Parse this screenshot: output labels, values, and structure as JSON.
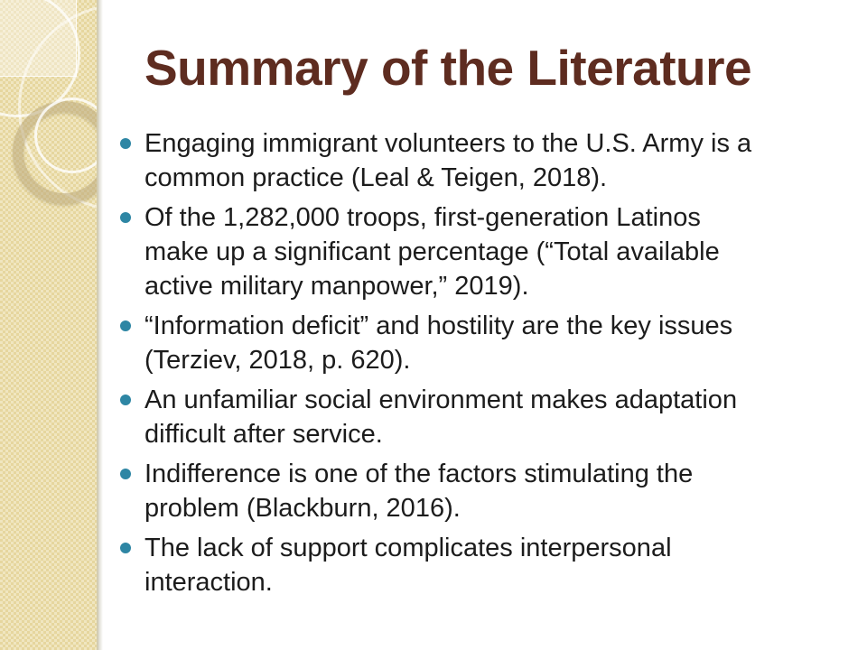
{
  "slide": {
    "title": "Summary of the Literature",
    "bullets": [
      "Engaging immigrant volunteers to the U.S. Army is a\ncommon practice (Leal & Teigen, 2018).",
      "Of the 1,282,000 troops, first-generation Latinos\nmake up a significant percentage (“Total available\nactive military manpower,” 2019).",
      "“Information deficit” and hostility are the key issues\n(Terziev, 2018, p. 620).",
      "An unfamiliar social environment makes adaptation\ndifficult after service.",
      "Indifference is one of the factors stimulating the\nproblem (Blackburn, 2016).",
      "The lack of support complicates interpersonal\ninteraction."
    ],
    "colors": {
      "title_text": "#5e2c20",
      "body_text": "#1c1c1c",
      "bullet_dot": "#2e86a4",
      "sidebar_base": "#eadca9",
      "sidebar_checker_light": "#f0e6c0",
      "sidebar_checker_dark": "#e6d69e",
      "sidebar_edge": "#d3cdb3"
    }
  }
}
